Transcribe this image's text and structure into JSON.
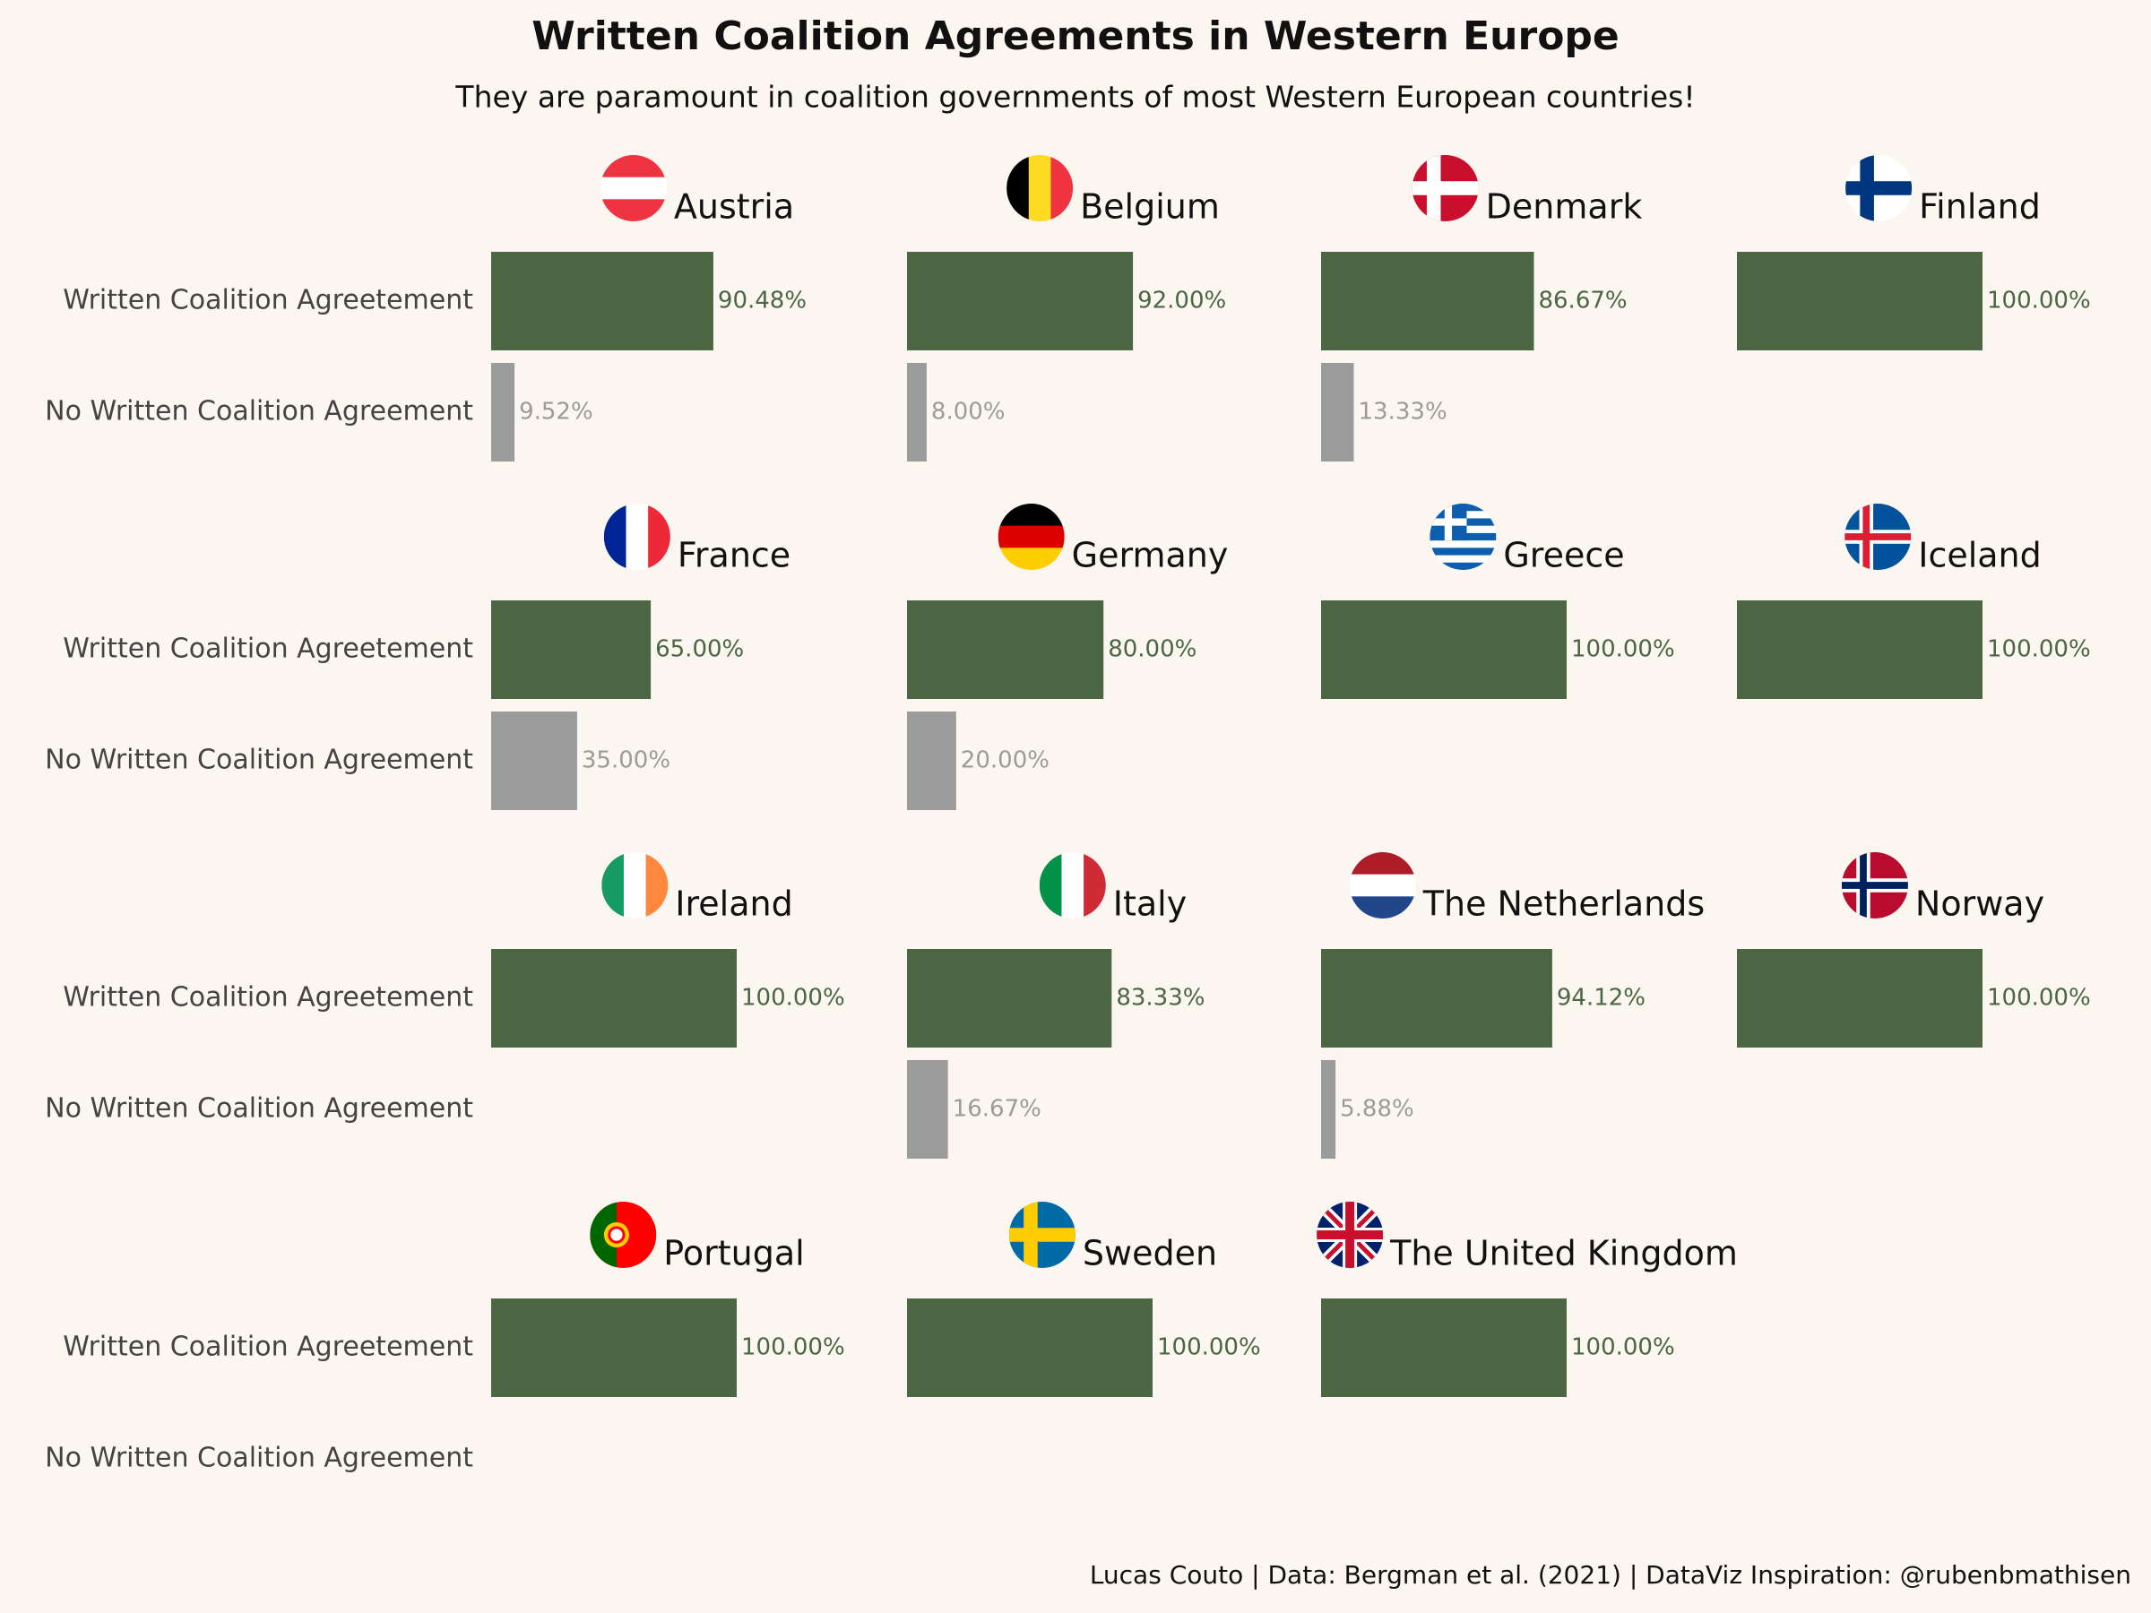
{
  "chart_data": {
    "type": "bar",
    "orientation": "horizontal",
    "title": "Written Coalition Agreements in Western Europe",
    "subtitle": "They are paramount in coalition governments of most Western European countries!",
    "caption": "Lucas Couto | Data: Bergman et al. (2021) | DataViz Inspiration: @rubenbmathisen",
    "categories": [
      "Written Coalition Agreetement",
      "No Written Coalition Agreement"
    ],
    "colors": [
      "#4b6643",
      "#9b9b9b"
    ],
    "xlim": [
      0,
      100
    ],
    "facets": [
      {
        "title": "Austria",
        "values": [
          90.48,
          9.52
        ],
        "value_labels": [
          "90.48%",
          "9.52%"
        ]
      },
      {
        "title": "Belgium",
        "values": [
          92,
          8
        ],
        "value_labels": [
          "92.00%",
          "8.00%"
        ]
      },
      {
        "title": "Denmark",
        "values": [
          86.67,
          13.33
        ],
        "value_labels": [
          "86.67%",
          "13.33%"
        ]
      },
      {
        "title": "Finland",
        "values": [
          100,
          0
        ],
        "value_labels": [
          "100.00%",
          null
        ]
      },
      {
        "title": "France",
        "values": [
          65,
          35
        ],
        "value_labels": [
          "65.00%",
          "35.00%"
        ]
      },
      {
        "title": "Germany",
        "values": [
          80,
          20
        ],
        "value_labels": [
          "80.00%",
          "20.00%"
        ]
      },
      {
        "title": "Greece",
        "values": [
          100,
          0
        ],
        "value_labels": [
          "100.00%",
          null
        ]
      },
      {
        "title": "Iceland",
        "values": [
          100,
          0
        ],
        "value_labels": [
          "100.00%",
          null
        ]
      },
      {
        "title": "Ireland",
        "values": [
          100,
          0
        ],
        "value_labels": [
          "100.00%",
          null
        ]
      },
      {
        "title": "Italy",
        "values": [
          83.33,
          16.67
        ],
        "value_labels": [
          "83.33%",
          "16.67%"
        ]
      },
      {
        "title": "The Netherlands",
        "values": [
          94.12,
          5.88
        ],
        "value_labels": [
          "94.12%",
          "5.88%"
        ]
      },
      {
        "title": "Norway",
        "values": [
          100,
          0
        ],
        "value_labels": [
          "100.00%",
          null
        ]
      },
      {
        "title": "Portugal",
        "values": [
          100,
          0
        ],
        "value_labels": [
          "100.00%",
          null
        ]
      },
      {
        "title": "Sweden",
        "values": [
          100,
          0
        ],
        "value_labels": [
          "100.00%",
          null
        ]
      },
      {
        "title": "The United Kingdom",
        "values": [
          100,
          0
        ],
        "value_labels": [
          "100.00%",
          null
        ]
      }
    ]
  }
}
